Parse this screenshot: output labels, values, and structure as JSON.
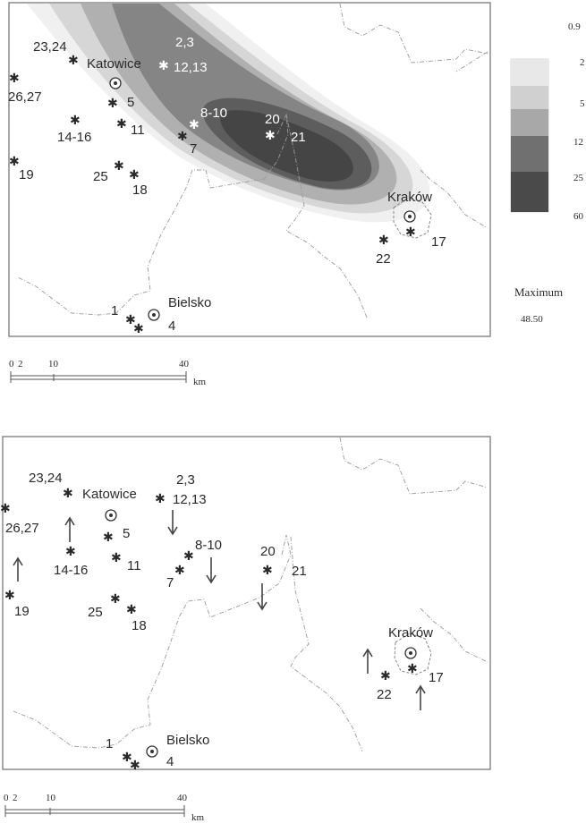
{
  "top_map": {
    "cities": [
      {
        "name": "Katowice",
        "key": "katowice"
      },
      {
        "name": "Kraków",
        "key": "krakow"
      },
      {
        "name": "Bielsko",
        "key": "bielsko"
      }
    ],
    "station_labels": {
      "s23_24": "23,24",
      "s26_27": "26,27",
      "s2_3": "2,3",
      "s12_13": "12,13",
      "s5": "5",
      "s14_16": "14-16",
      "s11": "11",
      "s8_10": "8-10",
      "s20": "20",
      "s21": "21",
      "s7": "7",
      "s19": "19",
      "s25": "25",
      "s18": "18",
      "s22": "22",
      "s17": "17",
      "s1": "1",
      "s4": "4"
    },
    "legend": {
      "levels": [
        "0.9",
        "2",
        "5",
        "12",
        "25",
        "60"
      ],
      "colors": [
        "#f2f2f2",
        "#d6d6d6",
        "#b3b3b3",
        "#858585",
        "#5d5d5d",
        "#404040"
      ],
      "maximum_label": "Maximum",
      "maximum_value": "48.50"
    },
    "scale": {
      "ticks": [
        "0",
        "2",
        "10",
        "40"
      ],
      "unit": "km"
    }
  },
  "bottom_map": {
    "cities": [
      {
        "name": "Katowice",
        "key": "katowice"
      },
      {
        "name": "Kraków",
        "key": "krakow"
      },
      {
        "name": "Bielsko",
        "key": "bielsko"
      }
    ],
    "station_labels": {
      "s23_24": "23,24",
      "s26_27": "26,27",
      "s2_3": "2,3",
      "s12_13": "12,13",
      "s5": "5",
      "s14_16": "14-16",
      "s11": "11",
      "s8_10": "8-10",
      "s20": "20",
      "s21": "21",
      "s7": "7",
      "s19": "19",
      "s25": "25",
      "s18": "18",
      "s22": "22",
      "s17": "17",
      "s1": "1",
      "s4": "4"
    },
    "arrows": {
      "up": "up",
      "down": "down"
    },
    "scale": {
      "ticks": [
        "0",
        "2",
        "10",
        "40"
      ],
      "unit": "km"
    }
  },
  "icons": {
    "station": "station-star-icon",
    "city": "city-circle-icon",
    "arrow": "wind-arrow-icon"
  }
}
